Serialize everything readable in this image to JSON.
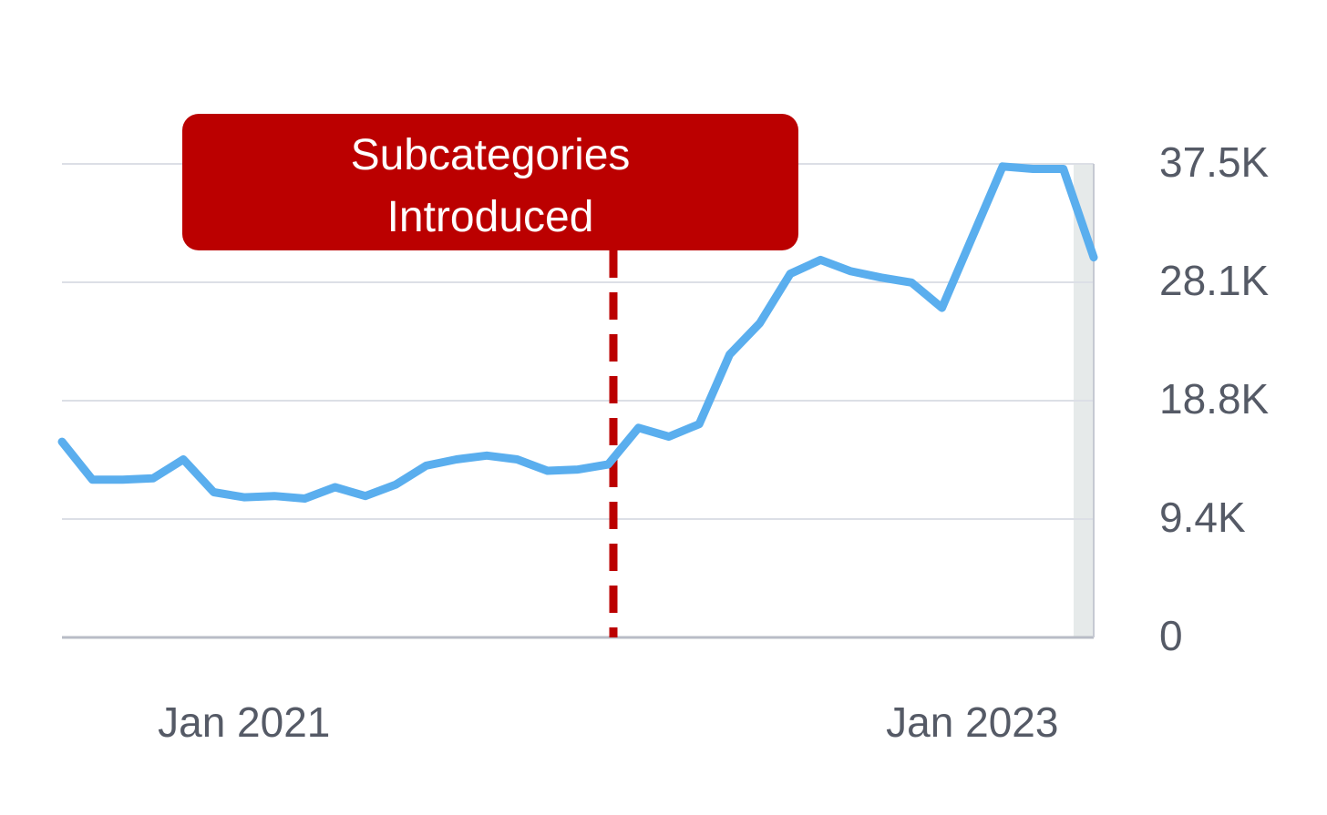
{
  "chart_data": {
    "type": "line",
    "annotation": "Subcategories Introduced",
    "x": [
      null,
      null,
      null,
      null,
      null,
      null,
      "Jan 2021",
      null,
      null,
      null,
      null,
      null,
      null,
      null,
      null,
      null,
      null,
      null,
      null,
      null,
      null,
      null,
      null,
      null,
      null,
      null,
      null,
      null,
      null,
      null,
      "Jan 2023",
      null,
      null,
      null,
      null
    ],
    "series": [
      {
        "color": "#5aaeee",
        "values": [
          15500,
          12500,
          12500,
          12600,
          14100,
          11500,
          11100,
          11200,
          11000,
          11900,
          11200,
          12100,
          13600,
          14100,
          14400,
          14100,
          13200,
          13300,
          13700,
          16600,
          15900,
          16900,
          22400,
          24900,
          28800,
          29900,
          29000,
          28500,
          28100,
          26100,
          31700,
          37300,
          37100,
          37100,
          30100
        ]
      }
    ],
    "ylim": [
      0,
      37500
    ],
    "yticks": [
      0,
      {
        "value": 9375,
        "label": "9.4K"
      },
      {
        "value": 18750,
        "label": "18.8K"
      },
      {
        "value": 28125,
        "label": "28.1K"
      },
      {
        "value": 37500,
        "label": "37.5K"
      }
    ],
    "grid": true
  }
}
